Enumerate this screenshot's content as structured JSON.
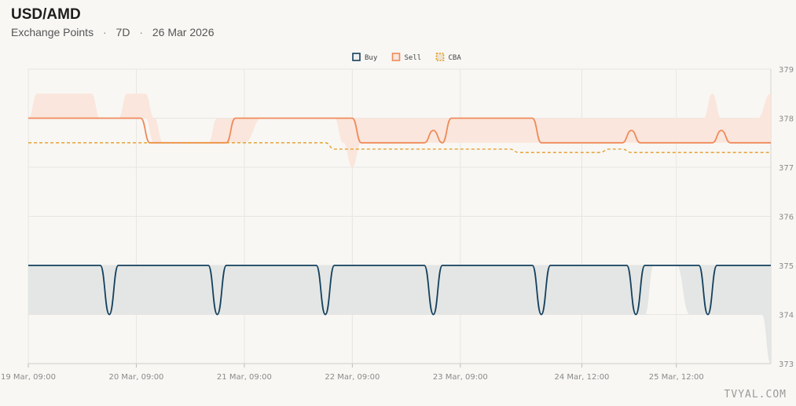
{
  "header": {
    "title": "USD/AMD",
    "subtitle_source": "Exchange Points",
    "subtitle_sep": "·",
    "subtitle_period": "7D",
    "subtitle_date": "26 Mar 2026"
  },
  "watermark": "TVYAL.COM",
  "colors": {
    "buy": "#15405e",
    "buy_band": "#e3e6e4",
    "sell": "#ef8a5a",
    "sell_band": "#fae6dc",
    "cba": "#e39b22",
    "grid": "#e8e6e2",
    "background": "#f8f7f4"
  },
  "chart_data": {
    "type": "line",
    "title": "",
    "xlabel": "",
    "ylabel": "",
    "ylim": [
      373,
      379
    ],
    "y_ticks": [
      373,
      374,
      375,
      376,
      377,
      378,
      379
    ],
    "y_axis_side": "right",
    "grid": true,
    "legend_position": "top-center",
    "x_range_hours": [
      0,
      165
    ],
    "x_ticks": [
      {
        "h": 0,
        "label": "19 Mar, 09:00"
      },
      {
        "h": 24,
        "label": "20 Mar, 09:00"
      },
      {
        "h": 48,
        "label": "21 Mar, 09:00"
      },
      {
        "h": 72,
        "label": "22 Mar, 09:00"
      },
      {
        "h": 96,
        "label": "23 Mar, 09:00"
      },
      {
        "h": 123,
        "label": "24 Mar, 12:00"
      },
      {
        "h": 144,
        "label": "25 Mar, 12:00"
      }
    ],
    "series": [
      {
        "name": "Buy",
        "legend_style": "line",
        "x": [
          0,
          14,
          16,
          18,
          20,
          22,
          28,
          38,
          40,
          42,
          44,
          46,
          52,
          62,
          64,
          66,
          68,
          70,
          76,
          86,
          88,
          90,
          92,
          94,
          100,
          110,
          112,
          114,
          116,
          118,
          124,
          131,
          133,
          135,
          137,
          139,
          144,
          147,
          149,
          151,
          153,
          155,
          160,
          163,
          165
        ],
        "values": [
          375,
          375,
          375,
          374,
          375,
          375,
          375,
          375,
          375,
          374,
          375,
          375,
          375,
          375,
          375,
          374,
          375,
          375,
          375,
          375,
          375,
          374,
          375,
          375,
          375,
          375,
          375,
          374,
          375,
          375,
          375,
          375,
          375,
          374,
          375,
          375,
          375,
          375,
          375,
          374,
          375,
          375,
          375,
          375,
          375
        ],
        "band": {
          "x": [
            0,
            14,
            16,
            18,
            20,
            22,
            28,
            38,
            40,
            42,
            44,
            46,
            48,
            50,
            52,
            54,
            56,
            62,
            64,
            66,
            68,
            70,
            76,
            86,
            88,
            90,
            92,
            94,
            100,
            110,
            112,
            114,
            116,
            118,
            124,
            131,
            133,
            135,
            137,
            139,
            144,
            147,
            149,
            151,
            153,
            155,
            160,
            163,
            165
          ],
          "upper": [
            375,
            375,
            375,
            375,
            375,
            375,
            375,
            375,
            375,
            375,
            375,
            375,
            375,
            375,
            375,
            375,
            375,
            375,
            375,
            375,
            375,
            375,
            375,
            375,
            375,
            375,
            375,
            375,
            375,
            375,
            375,
            375,
            375,
            375,
            375,
            375,
            375,
            375,
            375,
            375,
            375,
            375,
            375,
            375,
            375,
            375,
            375,
            375,
            375
          ],
          "lower": [
            374,
            374,
            374,
            374,
            374,
            374,
            374,
            374,
            374,
            374,
            374,
            374,
            374,
            374,
            374,
            374,
            374,
            374,
            374,
            374,
            374,
            374,
            374,
            374,
            374,
            374,
            374,
            374,
            374,
            374,
            374,
            374,
            374,
            374,
            374,
            374,
            374,
            374,
            374,
            375,
            375,
            374,
            374,
            374,
            374,
            374,
            374,
            374,
            373
          ]
        }
      },
      {
        "name": "Sell",
        "legend_style": "line",
        "x": [
          0,
          24,
          25,
          27,
          30,
          35,
          42,
          44,
          46,
          48,
          51,
          53,
          70,
          72,
          74,
          76,
          80,
          88,
          90,
          92,
          94,
          96,
          98,
          110,
          112,
          114,
          116,
          124,
          132,
          134,
          136,
          138,
          140,
          144,
          150,
          152,
          154,
          156,
          158,
          165
        ],
        "values": [
          378,
          378,
          378,
          377.5,
          377.5,
          377.5,
          377.5,
          377.5,
          378,
          378,
          378,
          378,
          378,
          378,
          377.5,
          377.5,
          377.5,
          377.5,
          377.75,
          377.5,
          378,
          378,
          378,
          378,
          378,
          377.5,
          377.5,
          377.5,
          377.5,
          377.75,
          377.5,
          377.5,
          377.5,
          377.5,
          377.5,
          377.5,
          377.75,
          377.5,
          377.5,
          377.5
        ],
        "band": {
          "x": [
            0,
            2,
            4,
            6,
            12,
            14,
            16,
            18,
            20,
            22,
            24,
            26,
            28,
            30,
            32,
            36,
            38,
            40,
            42,
            44,
            46,
            48,
            52,
            56,
            62,
            68,
            70,
            72,
            74,
            76,
            80,
            88,
            90,
            92,
            94,
            96,
            98,
            100,
            110,
            116,
            124,
            130,
            140,
            144,
            146,
            148,
            150,
            152,
            154,
            158,
            162,
            165
          ],
          "upper": [
            378,
            378.5,
            378.5,
            378.5,
            378.5,
            378.5,
            378,
            378,
            378,
            378.5,
            378.5,
            378.5,
            378,
            377.5,
            377.5,
            377.5,
            377.5,
            377.5,
            378,
            378,
            378,
            378,
            378,
            378,
            378,
            378,
            378,
            378,
            378,
            378,
            378,
            378,
            378,
            378,
            378,
            378,
            378,
            378,
            378,
            378,
            378,
            378,
            378,
            378,
            378,
            378,
            378,
            378.5,
            378,
            378,
            378,
            378.5
          ],
          "lower": [
            378,
            378,
            378,
            378,
            378,
            378,
            378,
            378,
            378,
            378,
            378,
            378,
            377.5,
            377.5,
            377.5,
            377.5,
            377.5,
            377.5,
            377.5,
            377.5,
            377.5,
            377.5,
            378,
            378,
            378,
            378,
            377.5,
            377,
            377.5,
            377.5,
            377.5,
            377.5,
            377.5,
            377.5,
            377.5,
            377.5,
            377.5,
            377.5,
            377.5,
            377.5,
            377.5,
            377.5,
            377.5,
            377.5,
            377.5,
            377.5,
            377.5,
            377.5,
            377.5,
            377.5,
            377.5,
            377.5
          ]
        }
      },
      {
        "name": "CBA",
        "legend_style": "dashed",
        "x": [
          0,
          66,
          68,
          107,
          109,
          127,
          129,
          132,
          134,
          165
        ],
        "values": [
          377.5,
          377.5,
          377.37,
          377.37,
          377.3,
          377.3,
          377.37,
          377.37,
          377.3,
          377.3
        ]
      }
    ]
  }
}
